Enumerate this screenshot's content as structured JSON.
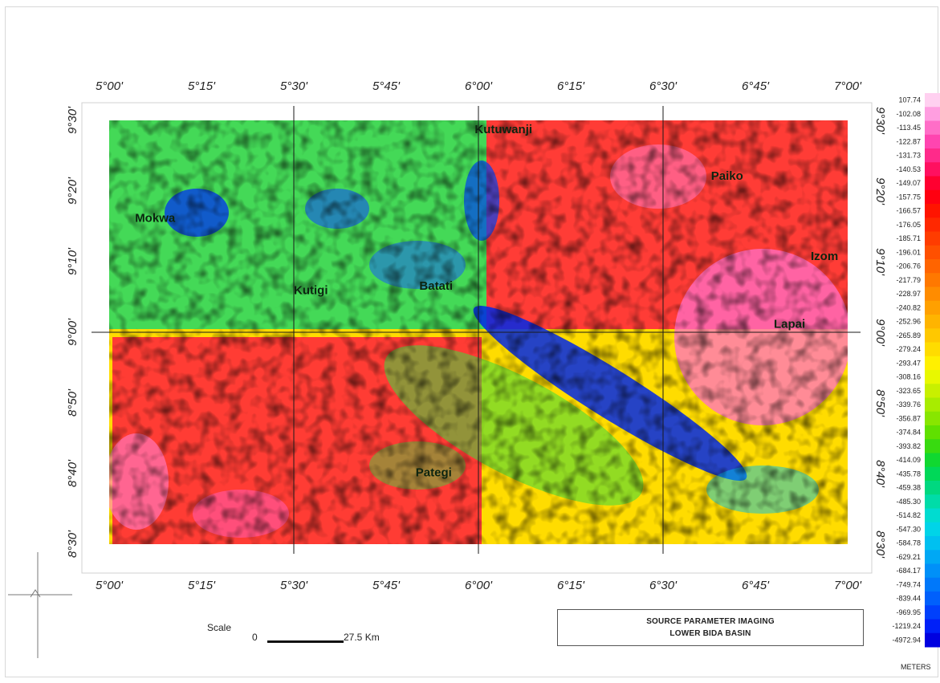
{
  "map": {
    "title_line1": "SOURCE PARAMETER IMAGING",
    "title_line2": "LOWER BIDA BASIN",
    "longitude_labels": [
      "5°00'",
      "5°15'",
      "5°30'",
      "5°45'",
      "6°00'",
      "6°15'",
      "6°30'",
      "6°45'",
      "7°00'"
    ],
    "latitude_labels": [
      "9°30'",
      "9°20'",
      "9°10'",
      "9°00'",
      "8°50'",
      "8°40'",
      "8°30'"
    ],
    "places": [
      {
        "name": "Kutuwanji",
        "lon": 5.99,
        "lat": 9.47
      },
      {
        "name": "Paiko",
        "lon": 6.63,
        "lat": 9.36
      },
      {
        "name": "Mokwa",
        "lon": 5.07,
        "lat": 9.26
      },
      {
        "name": "Izom",
        "lon": 6.9,
        "lat": 9.17
      },
      {
        "name": "Kutigi",
        "lon": 5.5,
        "lat": 9.09
      },
      {
        "name": "Batati",
        "lon": 5.84,
        "lat": 9.1
      },
      {
        "name": "Lapai",
        "lon": 6.8,
        "lat": 9.01
      },
      {
        "name": "Pategi",
        "lon": 5.83,
        "lat": 8.66
      }
    ],
    "scale": {
      "word": "Scale",
      "zero": "0",
      "distance": "27.5 Km"
    },
    "colorbar": {
      "values": [
        "107.74",
        "-102.08",
        "-113.45",
        "-122.87",
        "-131.73",
        "-140.53",
        "-149.07",
        "-157.75",
        "-166.57",
        "-176.05",
        "-185.71",
        "-196.01",
        "-206.76",
        "-217.79",
        "-228.97",
        "-240.82",
        "-252.96",
        "-265.89",
        "-279.24",
        "-293.47",
        "-308.16",
        "-323.65",
        "-339.76",
        "-356.87",
        "-374.84",
        "-393.82",
        "-414.09",
        "-435.78",
        "-459.38",
        "-485.30",
        "-514.82",
        "-547.30",
        "-584.78",
        "-629.21",
        "-684.17",
        "-749.74",
        "-839.44",
        "-969.95",
        "-1219.24",
        "-4972.94"
      ],
      "colors": [
        "#ffd0f0",
        "#ff9ee0",
        "#ff6ec7",
        "#ff45b0",
        "#ff2a8a",
        "#ff1060",
        "#ff0030",
        "#ff0010",
        "#ff1400",
        "#ff2800",
        "#ff3c00",
        "#ff5000",
        "#ff6400",
        "#ff7800",
        "#ff8c00",
        "#ffa000",
        "#ffb400",
        "#ffc800",
        "#ffdc00",
        "#fff000",
        "#e8f800",
        "#c8f000",
        "#a8ec00",
        "#88e600",
        "#60e000",
        "#38da10",
        "#10d830",
        "#00d858",
        "#00d880",
        "#00dca8",
        "#00dcd0",
        "#00d4e8",
        "#00c0f0",
        "#00a8f4",
        "#0090f8",
        "#0078fa",
        "#0060fc",
        "#0040fc",
        "#0020f8",
        "#0000e0"
      ],
      "units": "METERS"
    }
  }
}
